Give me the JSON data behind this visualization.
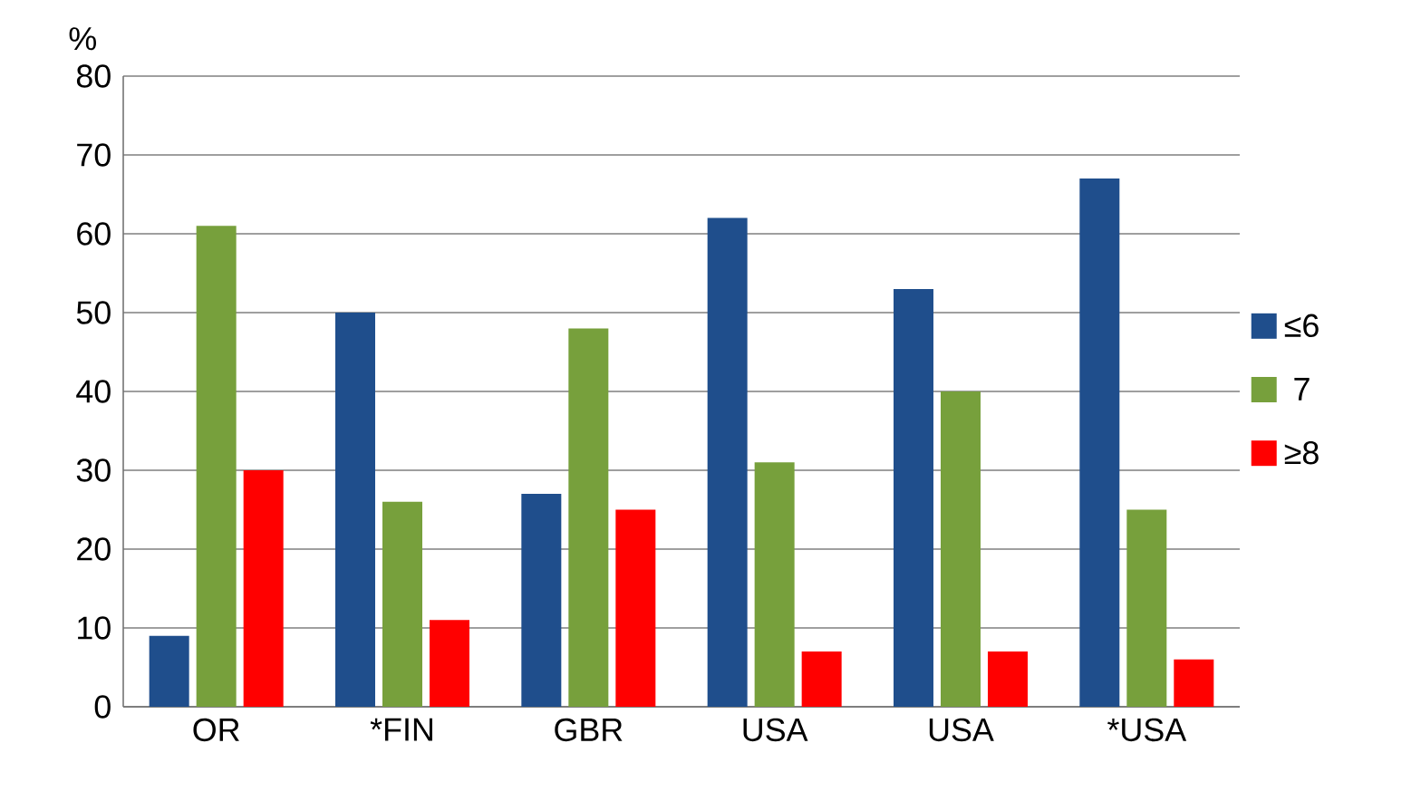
{
  "chart_data": {
    "type": "bar",
    "ylabel": "%",
    "categories": [
      "OR",
      "*FIN",
      "GBR",
      "USA",
      "USA",
      "*USA"
    ],
    "series": [
      {
        "name": "≤6",
        "color": "#1f4e8c",
        "values": [
          9,
          50,
          27,
          62,
          53,
          67
        ]
      },
      {
        "name": "7",
        "color": "#77a03c",
        "values": [
          61,
          26,
          48,
          31,
          40,
          25
        ]
      },
      {
        "name": "≥8",
        "color": "#ff0000",
        "values": [
          30,
          11,
          25,
          7,
          7,
          6
        ]
      }
    ],
    "ylim": [
      0,
      80
    ],
    "yticks": [
      0,
      10,
      20,
      30,
      40,
      50,
      60,
      70,
      80
    ],
    "grid": "y",
    "legend": "right"
  }
}
